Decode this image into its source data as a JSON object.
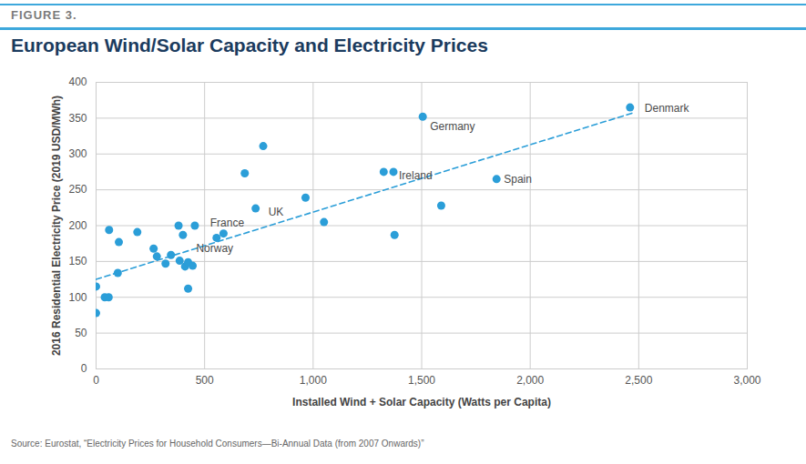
{
  "chart_data": {
    "type": "scatter",
    "figure_label": "FIGURE 3.",
    "title": "European Wind/Solar Capacity and Electricity Prices",
    "x_label": "Installed Wind + Solar Capacity (Watts per Capita)",
    "y_label": "2016 Residential Electricity Price (2019 USD/MWh)",
    "caption": "Source: Eurostat, “Electricity Prices for Household Consumers—Bi-Annual Data (from 2007 Onwards)”",
    "xlim": [
      0,
      3000
    ],
    "xticks": [
      0,
      500,
      {
        "value": 1000,
        "label": "1,000"
      },
      {
        "value": 1500,
        "label": "1,500"
      },
      {
        "value": 2000,
        "label": "2,000"
      },
      {
        "value": 2500,
        "label": "2,500"
      },
      {
        "value": 3000,
        "label": "3,000"
      }
    ],
    "ylim": [
      0,
      400
    ],
    "yticks": [
      0,
      50,
      100,
      150,
      200,
      250,
      300,
      350,
      400
    ],
    "grid": true,
    "series": [
      {
        "type": "scatter",
        "marker": "circle",
        "color": "#2b9ed8",
        "x": [
          0,
          0,
          40,
          58,
          60,
          100,
          105,
          190,
          265,
          280,
          320,
          345,
          380,
          385,
          400,
          410,
          424,
          424,
          445,
          455,
          555,
          587,
          685,
          735,
          770,
          965,
          1050,
          1325,
          1370,
          1375,
          1505,
          1590,
          1845,
          2460
        ],
        "values": [
          115,
          78,
          100,
          100,
          194,
          134,
          177,
          191,
          168,
          157,
          147,
          159,
          200,
          151,
          187,
          143,
          149,
          112,
          144,
          200,
          183,
          189,
          273,
          224,
          311,
          239,
          205,
          275,
          275,
          187,
          352,
          228,
          265,
          365
        ],
        "labels": [
          null,
          null,
          null,
          null,
          null,
          null,
          null,
          null,
          null,
          null,
          null,
          null,
          null,
          null,
          null,
          null,
          null,
          null,
          null,
          null,
          "Norway",
          "France",
          null,
          "UK",
          null,
          null,
          null,
          null,
          "Ireland",
          null,
          "Germany",
          null,
          "Spain",
          "Denmark"
        ]
      },
      {
        "type": "line",
        "line_style": "dashed",
        "color": "#2b9ed8",
        "x": [
          0,
          2480
        ],
        "values": [
          125,
          358
        ]
      }
    ]
  }
}
